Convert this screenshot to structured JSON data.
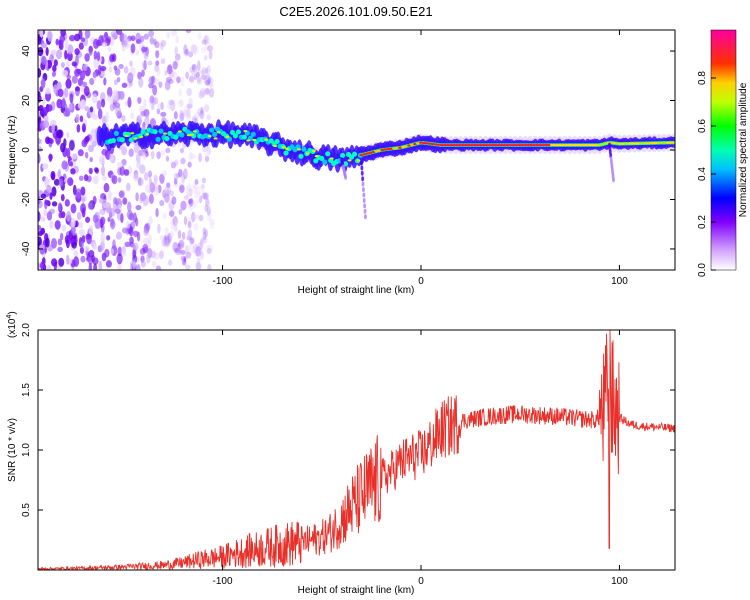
{
  "figure_title": "C2E5.2026.101.09.50.E21",
  "chart_data": [
    {
      "type": "heatmap",
      "title": "C2E5.2026.101.09.50.E21",
      "xlabel": "Height of straight line (km)",
      "ylabel": "Frequency (Hz)",
      "xlim": [
        -193,
        128
      ],
      "ylim": [
        -48.5,
        48.5
      ],
      "x_ticks": [
        -100,
        0,
        100
      ],
      "y_ticks": [
        -40,
        -20,
        0,
        20,
        40
      ],
      "colorbar": {
        "label": "Normalized spectral amplitude",
        "range": [
          0.0,
          1.0
        ],
        "ticks": [
          "0.0",
          "0.2",
          "0.4",
          "0.6",
          "0.8"
        ],
        "colormap": [
          "#ffffff",
          "#8000ff",
          "#0000ff",
          "#00ffff",
          "#00ff00",
          "#ffff00",
          "#ff0000",
          "#ff00ff"
        ]
      },
      "ridge_center_hz": {
        "x": [
          -160,
          -140,
          -120,
          -100,
          -90,
          -80,
          -70,
          -60,
          -50,
          -40,
          -35,
          -30,
          -20,
          -10,
          0,
          10,
          50,
          90,
          95,
          100,
          128
        ],
        "y": [
          5,
          6,
          6.5,
          6.5,
          6,
          4,
          1,
          -1,
          -3,
          -4,
          -3.5,
          -2,
          0,
          1,
          3,
          2,
          2,
          2,
          3,
          2.5,
          3
        ]
      },
      "noise_region_km": [
        -193,
        -130
      ]
    },
    {
      "type": "line",
      "xlabel": "Height of straight line (km)",
      "ylabel": "SNR (10 * v/v)",
      "y_multiplier_label": "(x10",
      "y_multiplier_exponent": "4",
      "xlim": [
        -193,
        128
      ],
      "ylim": [
        0,
        20000
      ],
      "x_ticks": [
        -100,
        0,
        100
      ],
      "y_ticks": [
        "0.5",
        "1.0",
        "1.5",
        "2.0"
      ],
      "series": [
        {
          "name": "SNR",
          "color": "#e8302a",
          "x": [
            -193,
            -170,
            -150,
            -130,
            -120,
            -110,
            -100,
            -90,
            -80,
            -70,
            -60,
            -50,
            -45,
            -40,
            -35,
            -30,
            -25,
            -20,
            -15,
            -10,
            -5,
            0,
            5,
            10,
            20,
            30,
            40,
            50,
            60,
            70,
            80,
            88,
            92,
            94,
            95,
            96,
            98,
            100,
            105,
            110,
            120,
            128
          ],
          "y": [
            100,
            150,
            250,
            400,
            600,
            900,
            1100,
            1500,
            1800,
            2100,
            2300,
            2700,
            3200,
            4200,
            5200,
            6100,
            6900,
            7600,
            8200,
            9000,
            9400,
            9600,
            10500,
            11600,
            12400,
            12700,
            12900,
            13000,
            12900,
            12800,
            12600,
            12500,
            13000,
            15000,
            18500,
            14000,
            13500,
            12700,
            12200,
            12000,
            11900,
            11800
          ]
        }
      ]
    }
  ]
}
